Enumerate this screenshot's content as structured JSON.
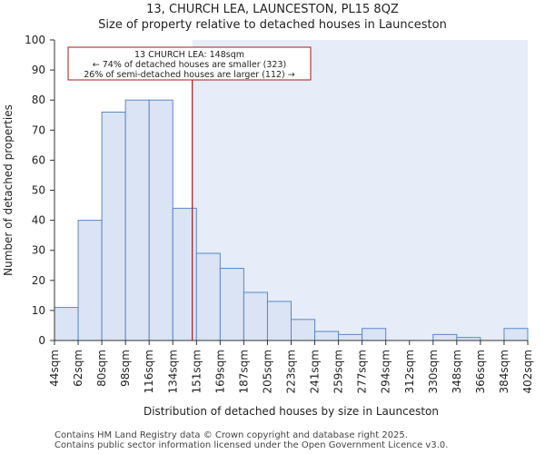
{
  "title": "13, CHURCH LEA, LAUNCESTON, PL15 8QZ",
  "subtitle": "Size of property relative to detached houses in Launceston",
  "footer": {
    "line1": "Contains HM Land Registry data © Crown copyright and database right 2025.",
    "line2": "Contains public sector information licensed under the Open Government Licence v3.0."
  },
  "colors": {
    "bar_fill": "#dae4f5",
    "bar_stroke": "#5b87c9",
    "highlight_bg": "#e6ecf8",
    "marker": "#aa1a1a",
    "annotation_border": "#aa1a1a"
  },
  "chart_data": {
    "type": "bar",
    "title": "13, CHURCH LEA, LAUNCESTON, PL15 8QZ",
    "subtitle": "Size of property relative to detached houses in Launceston",
    "xlabel": "Distribution of detached houses by size in Launceston",
    "ylabel": "Number of detached properties",
    "ylim": [
      0,
      100
    ],
    "yticks": [
      0,
      10,
      20,
      30,
      40,
      50,
      60,
      70,
      80,
      90,
      100
    ],
    "bin_edges": [
      44,
      62,
      80,
      98,
      116,
      134,
      151,
      169,
      187,
      205,
      223,
      241,
      259,
      277,
      294,
      312,
      330,
      348,
      366,
      384,
      402
    ],
    "tick_labels": [
      "44sqm",
      "62sqm",
      "80sqm",
      "98sqm",
      "116sqm",
      "134sqm",
      "151sqm",
      "169sqm",
      "187sqm",
      "205sqm",
      "223sqm",
      "241sqm",
      "259sqm",
      "277sqm",
      "294sqm",
      "312sqm",
      "330sqm",
      "348sqm",
      "366sqm",
      "384sqm",
      "402sqm"
    ],
    "values": [
      11,
      40,
      76,
      80,
      80,
      44,
      29,
      24,
      16,
      13,
      7,
      3,
      2,
      4,
      0,
      0,
      2,
      1,
      0,
      4
    ],
    "marker_value": 148,
    "annotation": {
      "line1": "13 CHURCH LEA: 148sqm",
      "line2": "← 74% of detached houses are smaller (323)",
      "line3": "26% of semi-detached houses are larger (112) →"
    },
    "grid": false
  }
}
